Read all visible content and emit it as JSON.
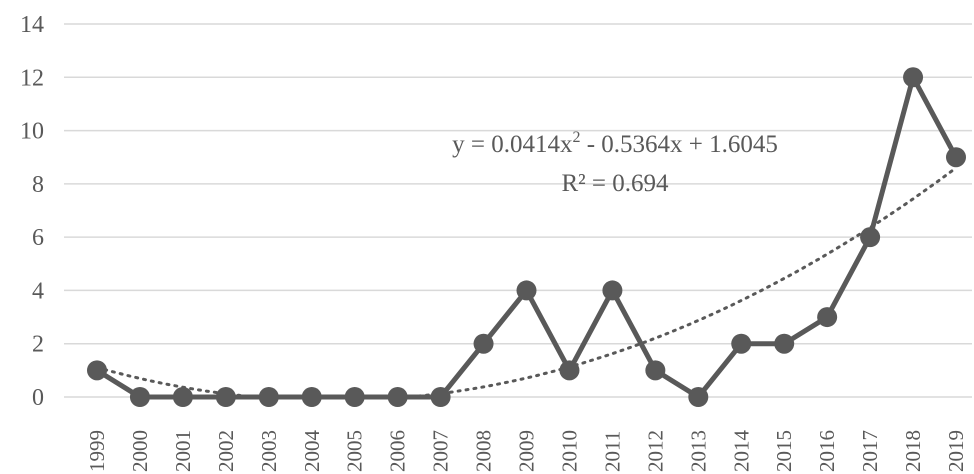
{
  "chart_data": {
    "type": "line",
    "title": "",
    "xlabel": "",
    "ylabel": "",
    "categories": [
      "1999",
      "2000",
      "2001",
      "2002",
      "2003",
      "2004",
      "2005",
      "2006",
      "2007",
      "2008",
      "2009",
      "2010",
      "2011",
      "2012",
      "2013",
      "2014",
      "2015",
      "2016",
      "2017",
      "2018",
      "2019"
    ],
    "series": [
      {
        "values": [
          1,
          0,
          0,
          0,
          0,
          0,
          0,
          0,
          0,
          2,
          4,
          1,
          4,
          1,
          0,
          2,
          2,
          3,
          6,
          12,
          9
        ]
      }
    ],
    "ylim": [
      0,
      14
    ],
    "y_ticks": [
      "0",
      "2",
      "4",
      "6",
      "8",
      "10",
      "12",
      "14"
    ],
    "grid": true,
    "legend": "none",
    "colors": {
      "series": "#595959",
      "grid": "#d9d9d9",
      "text": "#595959"
    },
    "trendline": {
      "type": "polynomial",
      "order": 2,
      "coefficients": [
        0.0414,
        -0.5364,
        1.6045
      ],
      "equation_parts": {
        "prefix": "y = 0.0414x",
        "exp": "2",
        "suffix": " - 0.5364x + 1.6045"
      },
      "r_squared_label": "R² = 0.694"
    }
  }
}
